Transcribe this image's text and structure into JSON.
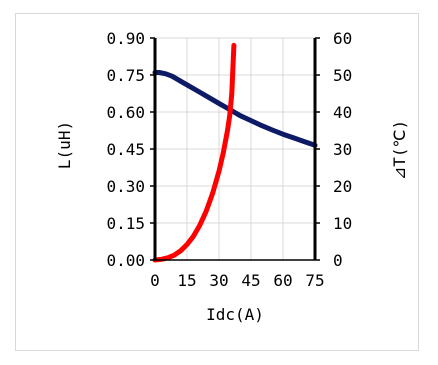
{
  "chart_data": {
    "type": "line",
    "xlabel": "Idc(A)",
    "ylabel_left": "L(uH)",
    "ylabel_right": "⊿T(℃)",
    "x_ticks": [
      "0",
      "15",
      "30",
      "45",
      "60",
      "75"
    ],
    "y_left_ticks": [
      "0.00",
      "0.15",
      "0.30",
      "0.45",
      "0.60",
      "0.75",
      "0.90"
    ],
    "y_right_ticks": [
      "0",
      "10",
      "20",
      "30",
      "40",
      "50",
      "60"
    ],
    "xlim": [
      0,
      75
    ],
    "ylim_left": [
      0,
      0.9
    ],
    "ylim_right": [
      0,
      60
    ],
    "grid": true,
    "legend": "none",
    "series": [
      {
        "axis": "left",
        "color": "#0d1a66",
        "x": [
          0,
          2,
          5,
          8,
          12,
          16,
          20,
          25,
          30,
          35,
          40,
          45,
          50,
          55,
          60,
          65,
          70,
          75
        ],
        "y": [
          0.76,
          0.76,
          0.755,
          0.745,
          0.725,
          0.705,
          0.685,
          0.66,
          0.635,
          0.61,
          0.585,
          0.565,
          0.545,
          0.527,
          0.51,
          0.495,
          0.48,
          0.465
        ]
      },
      {
        "axis": "right",
        "color": "#ff0000",
        "x": [
          0,
          3,
          6,
          9,
          12,
          15,
          18,
          21,
          24,
          27,
          30,
          32,
          34,
          35,
          36,
          37
        ],
        "y": [
          0,
          0.2,
          0.6,
          1.3,
          2.5,
          4.2,
          6.4,
          9.4,
          13.2,
          18,
          24,
          29,
          35,
          39,
          45,
          58
        ]
      }
    ]
  }
}
